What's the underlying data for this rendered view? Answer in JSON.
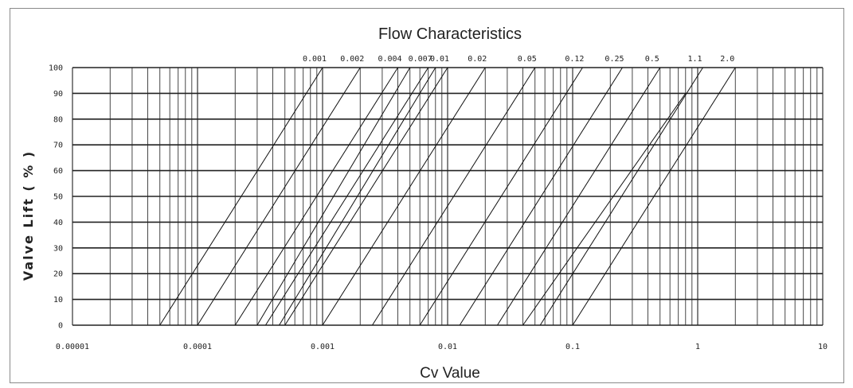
{
  "chart_data": {
    "type": "line",
    "title": "Flow Characteristics",
    "xlabel": "Cv Value",
    "ylabel": "Valve Lift ( % )",
    "x_scale": "log",
    "xlim": [
      1e-05,
      10
    ],
    "ylim": [
      0,
      100
    ],
    "x_tick_labels": [
      "0.00001",
      "0.0001",
      "0.001",
      "0.01",
      "0.1",
      "1",
      "10"
    ],
    "x_tick_values": [
      1e-05,
      0.0001,
      0.001,
      0.01,
      0.1,
      1,
      10
    ],
    "y_ticks": [
      0,
      10,
      20,
      30,
      40,
      50,
      60,
      70,
      80,
      90,
      100
    ],
    "grid": true,
    "series": [
      {
        "name": "0.001",
        "x": [
          5e-05,
          0.001
        ],
        "y": [
          0,
          100
        ]
      },
      {
        "name": "0.002",
        "x": [
          0.0001,
          0.002
        ],
        "y": [
          0,
          100
        ]
      },
      {
        "name": "0.004",
        "x": [
          0.0002,
          0.004
        ],
        "y": [
          0,
          100
        ]
      },
      {
        "name": "0.007",
        "x": [
          0.00035,
          0.007
        ],
        "y": [
          0,
          100
        ]
      },
      {
        "name": "0.01",
        "x": [
          0.0005,
          0.01
        ],
        "y": [
          0,
          100
        ]
      },
      {
        "name": "0.02",
        "x": [
          0.001,
          0.02
        ],
        "y": [
          0,
          100
        ]
      },
      {
        "name": "0.05",
        "x": [
          0.0025,
          0.05
        ],
        "y": [
          0,
          100
        ]
      },
      {
        "name": "0.12",
        "x": [
          0.006,
          0.12
        ],
        "y": [
          0,
          100
        ]
      },
      {
        "name": "0.25",
        "x": [
          0.0125,
          0.25
        ],
        "y": [
          0,
          100
        ]
      },
      {
        "name": "0.5",
        "x": [
          0.025,
          0.5
        ],
        "y": [
          0,
          100
        ]
      },
      {
        "name": "1.1",
        "x": [
          0.055,
          1.1
        ],
        "y": [
          0,
          100
        ]
      },
      {
        "name": "2.0",
        "x": [
          0.1,
          2.0
        ],
        "y": [
          0,
          100
        ]
      }
    ],
    "extra_lines": [
      {
        "x": [
          0.0003,
          0.005
        ],
        "y": [
          0,
          100
        ]
      },
      {
        "x": [
          0.00045,
          0.008
        ],
        "y": [
          0,
          100
        ]
      },
      {
        "x": [
          0.04,
          0.8
        ],
        "y": [
          0,
          90
        ]
      }
    ]
  }
}
